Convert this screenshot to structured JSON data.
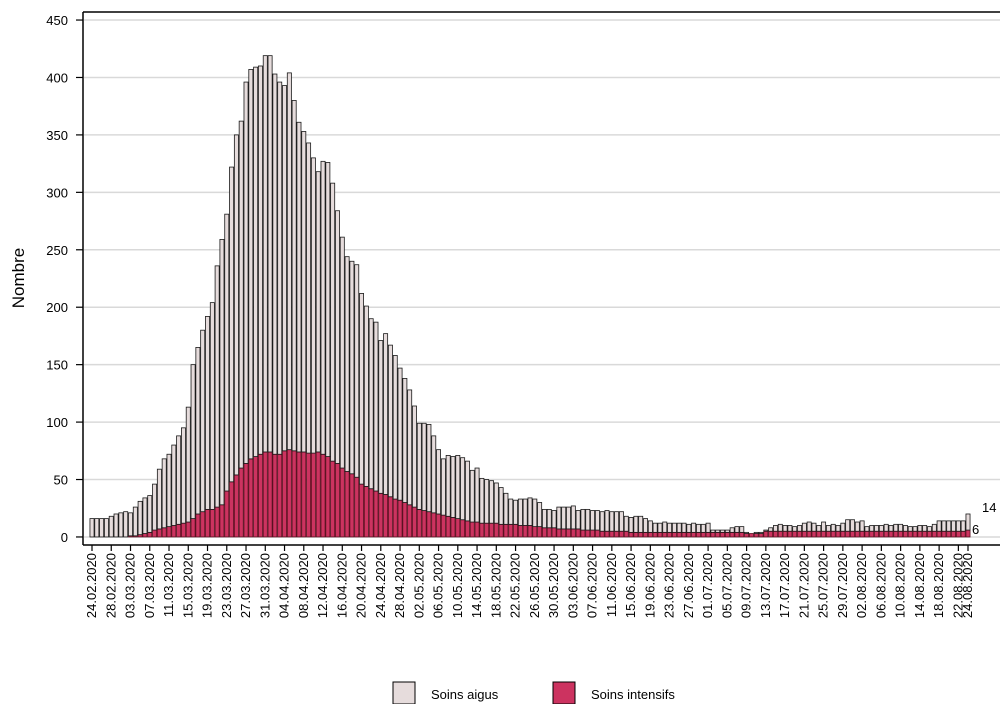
{
  "chart_data": {
    "type": "stacked_bar",
    "y_label": "Nombre",
    "ylim": [
      -7,
      457
    ],
    "yticks": [
      0,
      50,
      100,
      150,
      200,
      250,
      300,
      350,
      400,
      450
    ],
    "grid": true,
    "legend": "bottom",
    "categories": [
      "24.02.2020",
      null,
      null,
      null,
      "28.02.2020",
      null,
      null,
      null,
      "03.03.2020",
      null,
      null,
      null,
      "07.03.2020",
      null,
      null,
      null,
      "11.03.2020",
      null,
      null,
      null,
      "15.03.2020",
      null,
      null,
      null,
      "19.03.2020",
      null,
      null,
      null,
      "23.03.2020",
      null,
      null,
      null,
      "27.03.2020",
      null,
      null,
      null,
      "31.03.2020",
      null,
      null,
      null,
      "04.04.2020",
      null,
      null,
      null,
      "08.04.2020",
      null,
      null,
      null,
      "12.04.2020",
      null,
      null,
      null,
      "16.04.2020",
      null,
      null,
      null,
      "20.04.2020",
      null,
      null,
      null,
      "24.04.2020",
      null,
      null,
      null,
      "28.04.2020",
      null,
      null,
      null,
      "02.05.2020",
      null,
      null,
      null,
      "06.05.2020",
      null,
      null,
      null,
      "10.05.2020",
      null,
      null,
      null,
      "14.05.2020",
      null,
      null,
      null,
      "18.05.2020",
      null,
      null,
      null,
      "22.05.2020",
      null,
      null,
      null,
      "26.05.2020",
      null,
      null,
      null,
      "30.05.2020",
      null,
      null,
      null,
      "03.06.2020",
      null,
      null,
      null,
      "07.06.2020",
      null,
      null,
      null,
      "11.06.2020",
      null,
      null,
      null,
      "15.06.2020",
      null,
      null,
      null,
      "19.06.2020",
      null,
      null,
      null,
      "23.06.2020",
      null,
      null,
      null,
      "27.06.2020",
      null,
      null,
      null,
      "01.07.2020",
      null,
      null,
      null,
      "05.07.2020",
      null,
      null,
      null,
      "09.07.2020",
      null,
      null,
      null,
      "13.07.2020",
      null,
      null,
      null,
      "17.07.2020",
      null,
      null,
      null,
      "21.07.2020",
      null,
      null,
      null,
      "25.07.2020",
      null,
      null,
      null,
      "29.07.2020",
      null,
      null,
      null,
      "02.08.2020",
      null,
      null,
      null,
      "06.08.2020",
      null,
      null,
      null,
      "10.08.2020",
      null,
      null,
      null,
      "14.08.2020",
      null,
      null,
      null,
      "18.08.2020",
      null,
      null,
      null,
      "22.08.2020",
      null,
      "24.08.2020"
    ],
    "series": [
      {
        "name": "Soins aigus",
        "color": "#e6dcdc",
        "values": [
          16,
          16,
          16,
          16,
          18,
          20,
          21,
          22,
          20,
          25,
          29,
          31,
          32,
          40,
          52,
          60,
          63,
          70,
          77,
          83,
          100,
          134,
          145,
          158,
          168,
          180,
          210,
          231,
          241,
          274,
          296,
          302,
          332,
          339,
          339,
          338,
          345,
          345,
          331,
          324,
          318,
          328,
          305,
          287,
          279,
          270,
          257,
          244,
          255,
          256,
          242,
          220,
          201,
          187,
          185,
          185,
          166,
          157,
          148,
          147,
          133,
          140,
          132,
          125,
          115,
          108,
          100,
          88,
          75,
          76,
          76,
          67,
          56,
          49,
          53,
          53,
          55,
          54,
          52,
          45,
          47,
          39,
          38,
          37,
          35,
          32,
          27,
          22,
          21,
          23,
          23,
          24,
          24,
          21,
          16,
          16,
          15,
          19,
          19,
          19,
          20,
          16,
          18,
          18,
          17,
          17,
          17,
          18,
          17,
          17,
          17,
          13,
          13,
          14,
          14,
          12,
          10,
          8,
          8,
          9,
          8,
          8,
          8,
          8,
          7,
          8,
          7,
          7,
          8,
          2,
          2,
          2,
          2,
          4,
          5,
          5,
          1,
          0,
          1,
          1,
          1,
          3,
          5,
          6,
          5,
          5,
          4,
          5,
          7,
          8,
          7,
          5,
          8,
          5,
          6,
          5,
          7,
          10,
          10,
          8,
          9,
          4,
          5,
          5,
          5,
          6,
          5,
          6,
          6,
          5,
          4,
          4,
          5,
          5,
          4,
          6,
          9,
          9,
          9,
          9,
          9,
          9,
          14
        ]
      },
      {
        "name": "Soins intensifs",
        "color": "#cc3360",
        "values": [
          0,
          0,
          0,
          0,
          0,
          0,
          0,
          0,
          1,
          1,
          2,
          3,
          4,
          6,
          7,
          8,
          9,
          10,
          11,
          12,
          13,
          16,
          20,
          22,
          24,
          24,
          26,
          28,
          40,
          48,
          54,
          60,
          64,
          68,
          70,
          72,
          74,
          74,
          72,
          72,
          75,
          76,
          75,
          74,
          74,
          73,
          73,
          74,
          72,
          70,
          66,
          64,
          60,
          57,
          55,
          52,
          46,
          44,
          42,
          40,
          38,
          37,
          35,
          33,
          32,
          30,
          28,
          26,
          24,
          23,
          22,
          21,
          20,
          19,
          18,
          17,
          16,
          15,
          14,
          13,
          13,
          12,
          12,
          12,
          12,
          11,
          11,
          11,
          11,
          10,
          10,
          10,
          9,
          9,
          8,
          8,
          8,
          7,
          7,
          7,
          7,
          7,
          6,
          6,
          6,
          6,
          5,
          5,
          5,
          5,
          5,
          5,
          4,
          4,
          4,
          4,
          4,
          4,
          4,
          4,
          4,
          4,
          4,
          4,
          4,
          4,
          4,
          4,
          4,
          4,
          4,
          4,
          4,
          4,
          4,
          4,
          3,
          3,
          3,
          3,
          5,
          5,
          5,
          5,
          5,
          5,
          5,
          5,
          5,
          5,
          5,
          5,
          5,
          5,
          5,
          5,
          5,
          5,
          5,
          5,
          5,
          5,
          5,
          5,
          5,
          5,
          5,
          5,
          5,
          5,
          5,
          5,
          5,
          5,
          5,
          5,
          5,
          5,
          5,
          5,
          5,
          5,
          6
        ]
      }
    ]
  }
}
